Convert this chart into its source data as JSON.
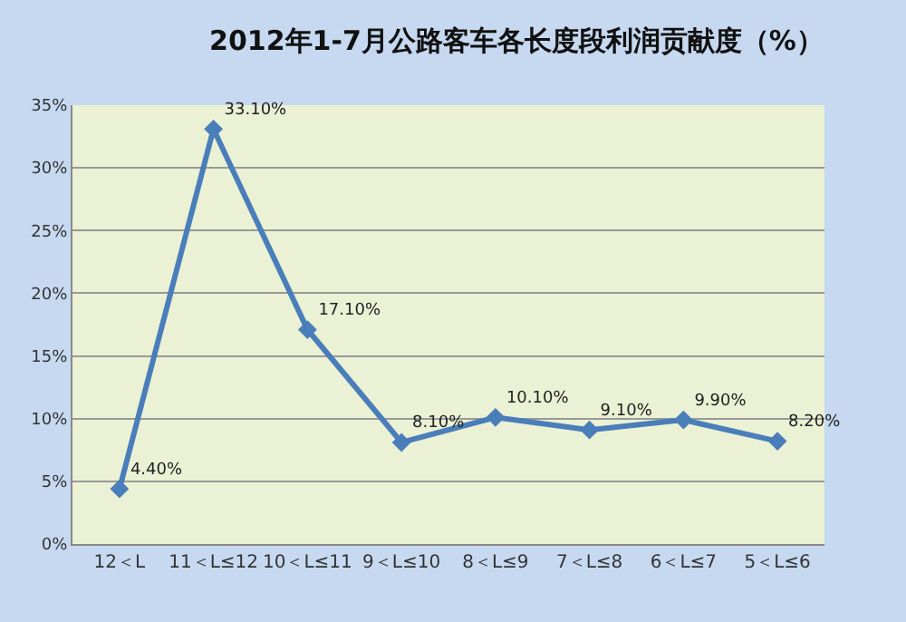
{
  "chart_data": {
    "type": "line",
    "title": "2012年1-7月公路客车各长度段利润贡献度（%）",
    "categories": [
      "12＜L",
      "11＜L≤12",
      "10＜L≤11",
      "9＜L≤10",
      "8＜L≤9",
      "7＜L≤8",
      "6＜L≤7",
      "5＜L≤6"
    ],
    "series": [
      {
        "color": "#4a7ebb",
        "values": [
          4.4,
          33.1,
          17.1,
          8.1,
          10.1,
          9.1,
          9.9,
          8.2
        ],
        "value_labels": [
          "4.40%",
          "33.10%",
          "17.10%",
          "8.10%",
          "10.10%",
          "9.10%",
          "9.90%",
          "8.20%"
        ]
      }
    ],
    "ylim": [
      0,
      35
    ],
    "yticks": [
      {
        "value": 0,
        "label": "0%"
      },
      {
        "value": 5,
        "label": "5%"
      },
      {
        "value": 10,
        "label": "10%"
      },
      {
        "value": 15,
        "label": "15%"
      },
      {
        "value": 20,
        "label": "20%"
      },
      {
        "value": 25,
        "label": "25%"
      },
      {
        "value": 30,
        "label": "30%"
      },
      {
        "value": 35,
        "label": "35%"
      }
    ],
    "grid": "y",
    "legend": false,
    "marker": "diamond",
    "line_style": "solid"
  }
}
